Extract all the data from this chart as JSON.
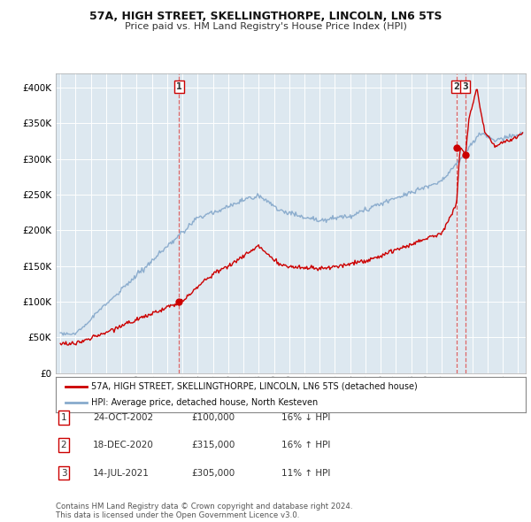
{
  "title": "57A, HIGH STREET, SKELLINGTHORPE, LINCOLN, LN6 5TS",
  "subtitle": "Price paid vs. HM Land Registry's House Price Index (HPI)",
  "legend_line1": "57A, HIGH STREET, SKELLINGTHORPE, LINCOLN, LN6 5TS (detached house)",
  "legend_line2": "HPI: Average price, detached house, North Kesteven",
  "footer1": "Contains HM Land Registry data © Crown copyright and database right 2024.",
  "footer2": "This data is licensed under the Open Government Licence v3.0.",
  "table": [
    {
      "num": 1,
      "date": "24-OCT-2002",
      "price": "£100,000",
      "change": "16% ↓ HPI"
    },
    {
      "num": 2,
      "date": "18-DEC-2020",
      "price": "£315,000",
      "change": "16% ↑ HPI"
    },
    {
      "num": 3,
      "date": "14-JUL-2021",
      "price": "£305,000",
      "change": "11% ↑ HPI"
    }
  ],
  "price_paid_color": "#cc0000",
  "hpi_color": "#88aacc",
  "vline_color": "#dd6666",
  "marker_color": "#cc0000",
  "ylim": [
    0,
    420000
  ],
  "xlim_start": 1994.7,
  "xlim_end": 2025.5,
  "bg_color": "#ffffff",
  "plot_bg_color": "#dde8f0",
  "grid_color": "#ffffff",
  "sale1_x": 2002.79,
  "sale1_y": 100000,
  "sale2_x": 2020.96,
  "sale2_y": 315000,
  "sale3_x": 2021.54,
  "sale3_y": 305000
}
